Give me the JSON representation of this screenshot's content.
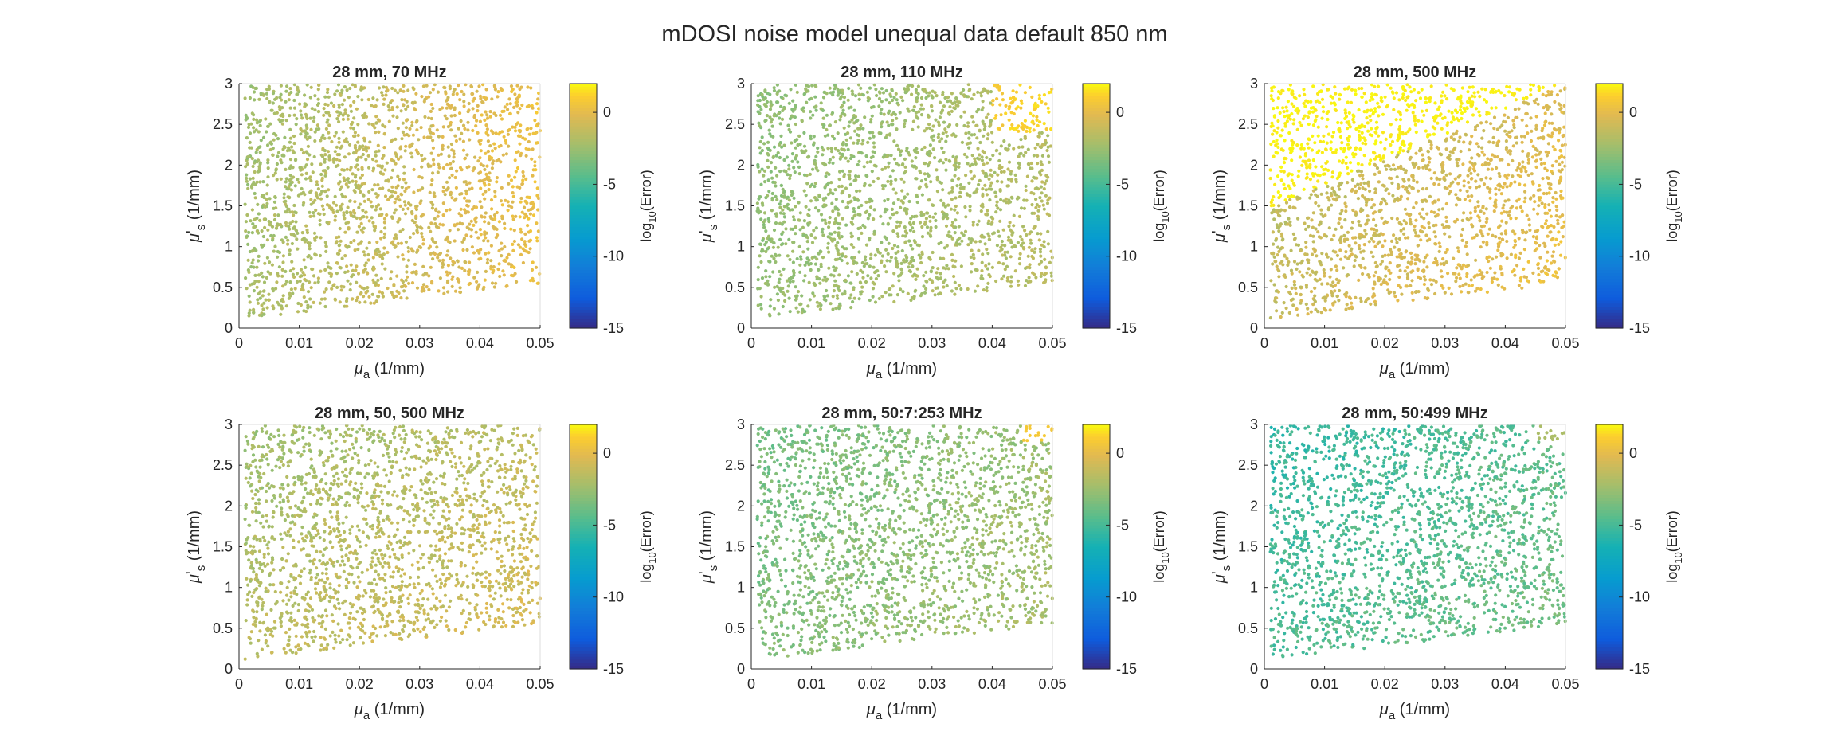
{
  "figure": {
    "title": "mDOSI noise model unequal data default 850 nm"
  },
  "colorbar": {
    "label_base": "log",
    "label_sub": "10",
    "label_tail": "(Error)",
    "ticks": [
      0,
      -5,
      -10,
      -15
    ],
    "range": [
      -15,
      2
    ],
    "colormap": "parula"
  },
  "axes_labels": {
    "x_symbol": "μ",
    "x_sub": "a",
    "x_unit": " (1/mm)",
    "y_symbol": "μ",
    "y_prime": "'",
    "y_sub": "s",
    "y_unit": " (1/mm)",
    "x_ticks": [
      "0",
      "0.01",
      "0.02",
      "0.03",
      "0.04",
      "0.05"
    ],
    "y_ticks": [
      "0",
      "0.5",
      "1",
      "1.5",
      "2",
      "2.5",
      "3"
    ]
  },
  "chart_data": [
    {
      "type": "scatter",
      "title": "28 mm, 70 MHz",
      "xlim": [
        0,
        0.05
      ],
      "ylim": [
        0,
        3
      ],
      "color_value_range": [
        -3.2,
        1.2
      ],
      "pattern": "error increases toward high μa; highest near μa 0.04–0.05, μs' 2.5–3",
      "feasible_region": "points above line from (0.001, 0.1) to (0.05, 0.55)"
    },
    {
      "type": "scatter",
      "title": "28 mm, 110 MHz",
      "xlim": [
        0,
        0.05
      ],
      "ylim": [
        0,
        3
      ],
      "color_value_range": [
        -3.5,
        1.5
      ],
      "pattern": "mostly low error; elevated error in top-right corner (μa > 0.04, μs' > 2.4)",
      "feasible_region": "points above line from (0.001, 0.1) to (0.05, 0.55)"
    },
    {
      "type": "scatter",
      "title": "28 mm, 500 MHz",
      "xlim": [
        0,
        0.05
      ],
      "ylim": [
        0,
        3
      ],
      "color_value_range": [
        -2.5,
        2
      ],
      "pattern": "very high error (yellow) region in upper-left above boundary from (0, 1.45) to (0.05, 3)",
      "feasible_region": "points above line from (0.001, 0.1) to (0.05, 0.55)"
    },
    {
      "type": "scatter",
      "title": "28 mm, 50, 500 MHz",
      "xlim": [
        0,
        0.05
      ],
      "ylim": [
        0,
        3
      ],
      "color_value_range": [
        -3.2,
        0.5
      ],
      "pattern": "uniform moderate error, slightly higher at low μs'",
      "feasible_region": "points above line from (0.001, 0.1) to (0.05, 0.55)"
    },
    {
      "type": "scatter",
      "title": "28 mm, 50:7:253 MHz",
      "xlim": [
        0,
        0.05
      ],
      "ylim": [
        0,
        3
      ],
      "color_value_range": [
        -4.5,
        0.8
      ],
      "pattern": "low error overall; small high-error patch at top-right corner",
      "feasible_region": "points above line from (0.001, 0.1) to (0.05, 0.55)"
    },
    {
      "type": "scatter",
      "title": "28 mm, 50:499 MHz",
      "xlim": [
        0,
        0.05
      ],
      "ylim": [
        0,
        3
      ],
      "color_value_range": [
        -6.5,
        -2
      ],
      "pattern": "lowest error overall (green); small higher-error patch at top-right corner",
      "feasible_region": "points above line from (0.001, 0.1) to (0.05, 0.55)"
    }
  ]
}
